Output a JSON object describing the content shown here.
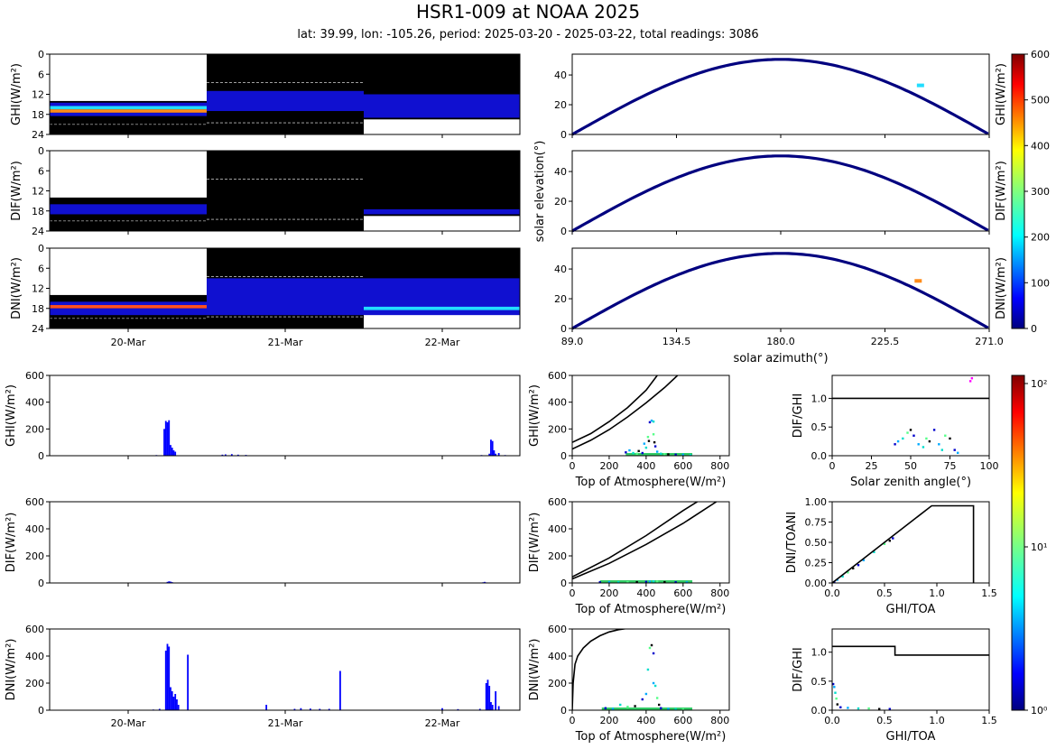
{
  "title": "HSR1-009 at NOAA 2025",
  "subtitle": "lat: 39.99, lon: -105.26, period: 2025-03-20 - 2025-03-22, total readings: 3086",
  "chart_data": [
    {
      "id": "heatmap-ghi",
      "type": "heatmap",
      "ylabel": "GHI(W/m²)",
      "ylim": [
        0,
        24
      ],
      "yticks": [
        "0",
        "6",
        "12",
        "18",
        "24"
      ],
      "bands": [
        {
          "day": 0,
          "from": 14.5,
          "to": 15.5,
          "level": "low"
        },
        {
          "day": 0,
          "from": 15.5,
          "to": 16.5,
          "level": "mid"
        },
        {
          "day": 0,
          "from": 16.5,
          "to": 17.5,
          "level": "high"
        },
        {
          "day": 0,
          "from": 17.5,
          "to": 18.5,
          "level": "low"
        },
        {
          "day": 1,
          "from": 11.0,
          "to": 17.0,
          "level": "low"
        },
        {
          "day": 2,
          "from": 12.0,
          "to": 19.0,
          "level": "low"
        }
      ]
    },
    {
      "id": "heatmap-dif",
      "type": "heatmap",
      "ylabel": "DIF(W/m²)",
      "ylim": [
        0,
        24
      ],
      "yticks": [
        "0",
        "6",
        "12",
        "18",
        "24"
      ],
      "bands": [
        {
          "day": 0,
          "from": 16.0,
          "to": 19.0,
          "level": "low"
        },
        {
          "day": 2,
          "from": 17.5,
          "to": 19.0,
          "level": "low"
        }
      ]
    },
    {
      "id": "heatmap-dni",
      "type": "heatmap",
      "ylabel": "DNI(W/m²)",
      "ylim": [
        0,
        24
      ],
      "yticks": [
        "0",
        "6",
        "12",
        "18",
        "24"
      ],
      "xticks": [
        "20-Mar",
        "21-Mar",
        "22-Mar"
      ],
      "bands": [
        {
          "day": 0,
          "from": 16.0,
          "to": 17.0,
          "level": "low"
        },
        {
          "day": 0,
          "from": 17.0,
          "to": 18.0,
          "level": "peak"
        },
        {
          "day": 0,
          "from": 18.0,
          "to": 20.0,
          "level": "low"
        },
        {
          "day": 1,
          "from": 9.0,
          "to": 20.0,
          "level": "low"
        },
        {
          "day": 2,
          "from": 9.0,
          "to": 20.0,
          "level": "low"
        },
        {
          "day": 2,
          "from": 17.5,
          "to": 18.5,
          "level": "mid"
        }
      ]
    },
    {
      "id": "solar-path-ghi",
      "type": "scatter",
      "ylabel": "GHI(W/m²)",
      "xlim": [
        89,
        271
      ],
      "ylim": [
        0,
        54
      ],
      "yticks": [
        "0",
        "20",
        "40"
      ],
      "path": {
        "peak_elevation": 50.5
      },
      "hotspot": {
        "x": 241,
        "y": 33,
        "level": "mid"
      }
    },
    {
      "id": "solar-path-dif",
      "type": "scatter",
      "ylabel": "DIF(W/m²)",
      "xlim": [
        89,
        271
      ],
      "ylim": [
        0,
        54
      ],
      "yticks": [
        "0",
        "20",
        "40"
      ],
      "path": {
        "peak_elevation": 50.5
      }
    },
    {
      "id": "solar-path-dni",
      "type": "scatter",
      "ylabel": "DNI(W/m²)",
      "xlim": [
        89,
        271
      ],
      "ylim": [
        0,
        54
      ],
      "yticks": [
        "0",
        "20",
        "40"
      ],
      "xticks": [
        "89.0",
        "134.5",
        "180.0",
        "225.5",
        "271.0"
      ],
      "xlabel": "solar azimuth(°)",
      "shared_ylabel": "solar elevation(°)",
      "path": {
        "peak_elevation": 50.5
      },
      "hotspot": {
        "x": 240,
        "y": 32,
        "level": "high"
      }
    },
    {
      "id": "colorbar-linear",
      "type": "colorbar",
      "range": [
        0,
        600
      ],
      "ticks": [
        "0",
        "100",
        "200",
        "300",
        "400",
        "500",
        "600"
      ]
    },
    {
      "id": "timeseries-ghi",
      "type": "bar",
      "ylabel": "GHI(W/m²)",
      "xlim": [
        0,
        3
      ],
      "ylim": [
        0,
        600
      ],
      "yticks": [
        "0",
        "200",
        "400",
        "600"
      ],
      "x": [
        0.68,
        0.73,
        0.74,
        0.75,
        0.76,
        0.77,
        0.78,
        0.79,
        0.8,
        1.1,
        1.12,
        1.16,
        1.2,
        1.25,
        2.75,
        2.8,
        2.81,
        2.82,
        2.83,
        2.84,
        2.86,
        2.9
      ],
      "values": [
        5,
        200,
        260,
        250,
        265,
        80,
        60,
        40,
        30,
        8,
        10,
        12,
        8,
        6,
        5,
        15,
        120,
        110,
        40,
        15,
        20,
        5
      ]
    },
    {
      "id": "timeseries-dif",
      "type": "bar",
      "ylabel": "DIF(W/m²)",
      "xlim": [
        0,
        3
      ],
      "ylim": [
        0,
        600
      ],
      "yticks": [
        "0",
        "200",
        "400",
        "600"
      ],
      "x": [
        0.75,
        0.76,
        0.77,
        0.78,
        2.76,
        2.77,
        2.78
      ],
      "values": [
        8,
        12,
        10,
        6,
        5,
        8,
        4
      ]
    },
    {
      "id": "timeseries-dni",
      "type": "bar",
      "ylabel": "DNI(W/m²)",
      "xlim": [
        0,
        3
      ],
      "ylim": [
        0,
        600
      ],
      "yticks": [
        "0",
        "200",
        "400",
        "600"
      ],
      "xticks": [
        "20-Mar",
        "21-Mar",
        "22-Mar"
      ],
      "x": [
        0.66,
        0.7,
        0.74,
        0.75,
        0.76,
        0.77,
        0.78,
        0.79,
        0.8,
        0.81,
        0.82,
        0.88,
        1.38,
        1.56,
        1.6,
        1.66,
        1.72,
        1.78,
        1.85,
        2.5,
        2.6,
        2.74,
        2.78,
        2.79,
        2.8,
        2.81,
        2.82,
        2.84,
        2.86
      ],
      "values": [
        5,
        10,
        440,
        490,
        470,
        170,
        140,
        100,
        120,
        80,
        40,
        410,
        40,
        10,
        15,
        12,
        10,
        10,
        290,
        15,
        8,
        10,
        200,
        225,
        180,
        60,
        40,
        140,
        30
      ]
    },
    {
      "id": "toa-ghi",
      "type": "scatter",
      "ylabel": "GHI(W/m²)",
      "xlabel": "Top of Atmosphere(W/m²)",
      "xlim": [
        0,
        850
      ],
      "ylim": [
        0,
        600
      ],
      "xticks": [
        "0",
        "200",
        "400",
        "600",
        "800"
      ],
      "yticks": [
        "0",
        "200",
        "400",
        "600"
      ],
      "curves": [
        {
          "x": [
            0,
            100,
            200,
            300,
            400,
            460
          ],
          "y": [
            100,
            165,
            255,
            360,
            490,
            600
          ]
        },
        {
          "x": [
            0,
            100,
            200,
            300,
            400,
            500,
            570
          ],
          "y": [
            50,
            115,
            195,
            290,
            395,
            510,
            600
          ]
        }
      ],
      "points": [
        [
          290,
          25
        ],
        [
          310,
          40
        ],
        [
          330,
          20
        ],
        [
          350,
          15
        ],
        [
          360,
          35
        ],
        [
          380,
          20
        ],
        [
          390,
          90
        ],
        [
          400,
          60
        ],
        [
          410,
          140
        ],
        [
          415,
          110
        ],
        [
          420,
          250
        ],
        [
          430,
          262
        ],
        [
          440,
          255
        ],
        [
          440,
          160
        ],
        [
          445,
          100
        ],
        [
          450,
          70
        ],
        [
          460,
          30
        ],
        [
          480,
          15
        ],
        [
          500,
          12
        ],
        [
          520,
          10
        ],
        [
          560,
          8
        ],
        [
          600,
          8
        ],
        [
          640,
          5
        ]
      ]
    },
    {
      "id": "toa-dif",
      "type": "scatter",
      "ylabel": "DIF(W/m²)",
      "xlabel": "Top of Atmosphere(W/m²)",
      "xlim": [
        0,
        850
      ],
      "ylim": [
        0,
        600
      ],
      "xticks": [
        "0",
        "200",
        "400",
        "600",
        "800"
      ],
      "yticks": [
        "0",
        "200",
        "400",
        "600"
      ],
      "curves": [
        {
          "x": [
            0,
            200,
            400,
            600,
            700
          ],
          "y": [
            45,
            185,
            350,
            535,
            620
          ]
        },
        {
          "x": [
            0,
            200,
            400,
            600,
            780
          ],
          "y": [
            30,
            145,
            285,
            440,
            600
          ]
        }
      ],
      "points": [
        [
          150,
          5
        ],
        [
          200,
          6
        ],
        [
          250,
          5
        ],
        [
          300,
          5
        ],
        [
          350,
          6
        ],
        [
          400,
          8
        ],
        [
          420,
          10
        ],
        [
          440,
          12
        ],
        [
          460,
          10
        ],
        [
          500,
          6
        ],
        [
          560,
          5
        ],
        [
          620,
          4
        ]
      ]
    },
    {
      "id": "toa-dni",
      "type": "scatter",
      "ylabel": "DNI(W/m²)",
      "xlabel": "Top of Atmosphere(W/m²)",
      "xlim": [
        0,
        850
      ],
      "ylim": [
        0,
        600
      ],
      "xticks": [
        "0",
        "200",
        "400",
        "600",
        "800"
      ],
      "yticks": [
        "0",
        "200",
        "400",
        "600"
      ],
      "curves": [
        {
          "x": [
            0,
            5,
            15,
            30,
            60,
            100,
            150,
            200,
            250,
            300
          ],
          "y": [
            0,
            200,
            340,
            400,
            460,
            510,
            550,
            578,
            595,
            605
          ]
        }
      ],
      "points": [
        [
          180,
          15
        ],
        [
          220,
          10
        ],
        [
          260,
          40
        ],
        [
          300,
          25
        ],
        [
          340,
          30
        ],
        [
          380,
          80
        ],
        [
          400,
          120
        ],
        [
          410,
          300
        ],
        [
          420,
          460
        ],
        [
          430,
          480
        ],
        [
          440,
          420
        ],
        [
          440,
          200
        ],
        [
          450,
          180
        ],
        [
          460,
          90
        ],
        [
          470,
          40
        ],
        [
          480,
          15
        ],
        [
          520,
          10
        ],
        [
          560,
          8
        ],
        [
          600,
          6
        ]
      ]
    },
    {
      "id": "closure-dif-ghi-zenith",
      "type": "scatter",
      "ylabel": "DIF/GHI",
      "xlabel": "Solar zenith angle(°)",
      "xlim": [
        0,
        100
      ],
      "ylim": [
        0,
        1.4
      ],
      "xticks": [
        "0",
        "25",
        "50",
        "75",
        "100"
      ],
      "yticks": [
        "0.0",
        "0.5",
        "1.0"
      ],
      "curves": [
        {
          "x": [
            0,
            100
          ],
          "y": [
            1.0,
            1.0
          ]
        }
      ],
      "points": [
        [
          40,
          0.2
        ],
        [
          42,
          0.25
        ],
        [
          45,
          0.3
        ],
        [
          48,
          0.4
        ],
        [
          50,
          0.45
        ],
        [
          52,
          0.35
        ],
        [
          55,
          0.2
        ],
        [
          58,
          0.15
        ],
        [
          60,
          0.3
        ],
        [
          62,
          0.25
        ],
        [
          65,
          0.45
        ],
        [
          68,
          0.2
        ],
        [
          70,
          0.1
        ],
        [
          72,
          0.35
        ],
        [
          75,
          0.3
        ],
        [
          78,
          0.1
        ],
        [
          80,
          0.05
        ],
        [
          88,
          1.3
        ],
        [
          89,
          1.35
        ]
      ]
    },
    {
      "id": "closure-dni-toani",
      "type": "scatter",
      "ylabel": "DNI/TOANI",
      "xlabel": "GHI/TOA",
      "xlim": [
        0,
        1.5
      ],
      "ylim": [
        0,
        1.0
      ],
      "xticks": [
        "0.0",
        "0.5",
        "1.0",
        "1.5"
      ],
      "yticks": [
        "0.00",
        "0.25",
        "0.50",
        "0.75",
        "1.00"
      ],
      "curves": [
        {
          "x": [
            0,
            0.95,
            1.35,
            1.35
          ],
          "y": [
            0,
            0.95,
            0.95,
            0
          ]
        }
      ],
      "points": [
        [
          0.02,
          0.01
        ],
        [
          0.05,
          0.04
        ],
        [
          0.1,
          0.08
        ],
        [
          0.15,
          0.13
        ],
        [
          0.2,
          0.18
        ],
        [
          0.25,
          0.22
        ],
        [
          0.3,
          0.28
        ],
        [
          0.4,
          0.38
        ],
        [
          0.5,
          0.48
        ],
        [
          0.55,
          0.52
        ],
        [
          0.58,
          0.55
        ]
      ]
    },
    {
      "id": "closure-dif-ghi-ratio",
      "type": "scatter",
      "ylabel": "DIF/GHI",
      "xlabel": "GHI/TOA",
      "xlim": [
        0,
        1.5
      ],
      "ylim": [
        0,
        1.4
      ],
      "xticks": [
        "0.0",
        "0.5",
        "1.0",
        "1.5"
      ],
      "yticks": [
        "0.0",
        "0.5",
        "1.0"
      ],
      "curves": [
        {
          "x": [
            0,
            0.6,
            0.6,
            1.5
          ],
          "y": [
            1.1,
            1.1,
            0.95,
            0.95
          ]
        }
      ],
      "points": [
        [
          0.01,
          0.45
        ],
        [
          0.02,
          0.4
        ],
        [
          0.03,
          0.3
        ],
        [
          0.04,
          0.2
        ],
        [
          0.05,
          0.1
        ],
        [
          0.08,
          0.05
        ],
        [
          0.15,
          0.04
        ],
        [
          0.25,
          0.03
        ],
        [
          0.35,
          0.03
        ],
        [
          0.45,
          0.02
        ],
        [
          0.55,
          0.02
        ]
      ]
    },
    {
      "id": "colorbar-log",
      "type": "colorbar",
      "scale": "log",
      "range": [
        1,
        120
      ],
      "ticks": [
        "10⁰",
        "10¹",
        "10²"
      ]
    }
  ]
}
